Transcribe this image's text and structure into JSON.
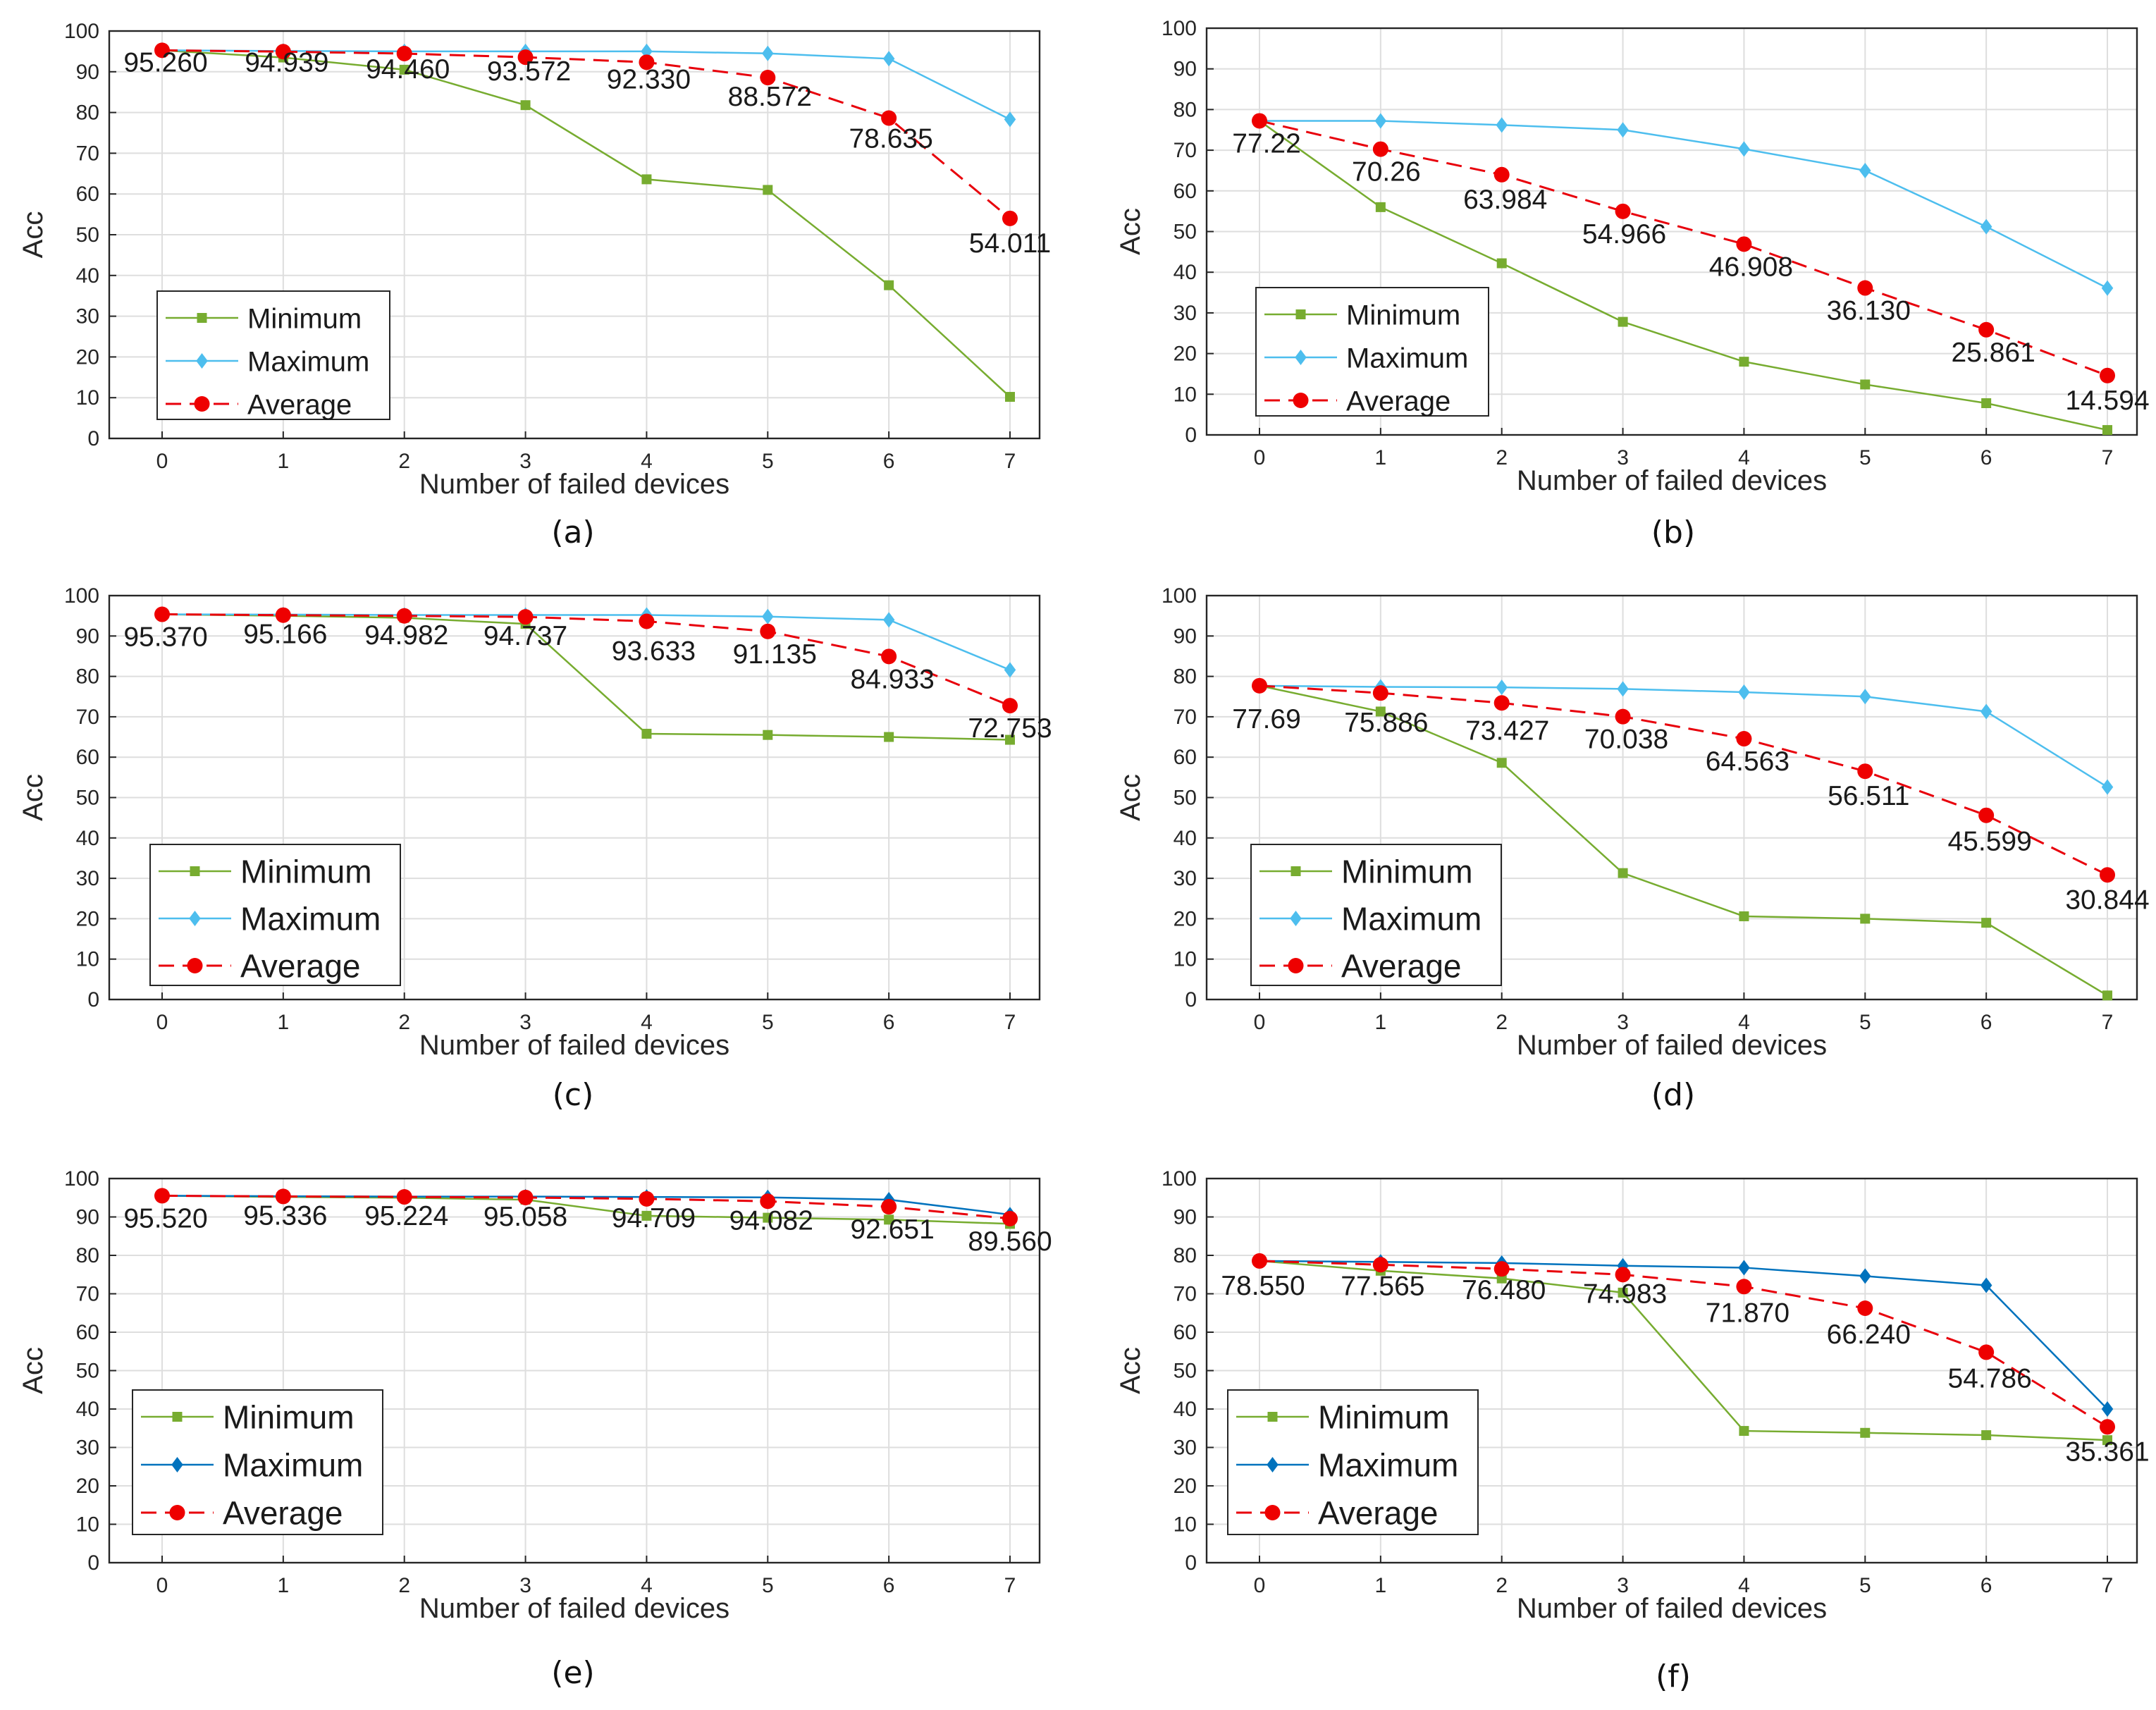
{
  "figure": "Accuracy versus number of failed devices",
  "colors": {
    "minimum": "#77AC30",
    "maximum_light": "#4DBEEE",
    "maximum_dark": "#0072BD",
    "average": "#E8000B",
    "marker_average": "#EE0000"
  },
  "chart_data": [
    {
      "id": "a",
      "type": "line",
      "caption": "(a)",
      "xlabel": "Number of failed devices",
      "ylabel": "Acc",
      "x": [
        0,
        1,
        2,
        3,
        4,
        5,
        6,
        7
      ],
      "xticks": [
        "0",
        "1",
        "2",
        "3",
        "4",
        "5",
        "6",
        "7"
      ],
      "yticks": [
        "0",
        "10",
        "20",
        "30",
        "40",
        "50",
        "60",
        "70",
        "80",
        "90",
        "100"
      ],
      "ylim": [
        0,
        100
      ],
      "grid": true,
      "legend_position": "bottom-left",
      "max_style": "light",
      "series": [
        {
          "name": "Minimum",
          "values": [
            95.26,
            93.5,
            90.5,
            81.8,
            63.6,
            61.0,
            37.6,
            10.2
          ]
        },
        {
          "name": "Maximum",
          "values": [
            95.26,
            95.1,
            95.0,
            95.0,
            95.0,
            94.5,
            93.2,
            78.3
          ]
        },
        {
          "name": "Average",
          "values": [
            95.26,
            94.939,
            94.46,
            93.572,
            92.33,
            88.572,
            78.635,
            54.011
          ]
        }
      ],
      "annotations": [
        "95.260",
        "94.939",
        "94.460",
        "93.572",
        "92.330",
        "88.572",
        "78.635",
        "54.011"
      ]
    },
    {
      "id": "b",
      "type": "line",
      "caption": "(b)",
      "xlabel": "Number of failed devices",
      "ylabel": "Acc",
      "x": [
        0,
        1,
        2,
        3,
        4,
        5,
        6,
        7
      ],
      "xticks": [
        "0",
        "1",
        "2",
        "3",
        "4",
        "5",
        "6",
        "7"
      ],
      "yticks": [
        "0",
        "10",
        "20",
        "30",
        "40",
        "50",
        "60",
        "70",
        "80",
        "90",
        "100"
      ],
      "ylim": [
        0,
        100
      ],
      "grid": true,
      "legend_position": "bottom-left",
      "max_style": "light",
      "series": [
        {
          "name": "Minimum",
          "values": [
            77.22,
            56.0,
            42.2,
            27.8,
            18.0,
            12.4,
            7.8,
            1.2
          ]
        },
        {
          "name": "Maximum",
          "values": [
            77.22,
            77.2,
            76.2,
            75.0,
            70.3,
            65.0,
            51.2,
            36.1
          ]
        },
        {
          "name": "Average",
          "values": [
            77.22,
            70.26,
            63.984,
            54.966,
            46.908,
            36.13,
            25.861,
            14.594
          ]
        }
      ],
      "annotations": [
        "77.22",
        "70.26",
        "63.984",
        "54.966",
        "46.908",
        "36.130",
        "25.861",
        "14.594"
      ]
    },
    {
      "id": "c",
      "type": "line",
      "caption": "(c)",
      "xlabel": "Number of failed devices",
      "ylabel": "Acc",
      "x": [
        0,
        1,
        2,
        3,
        4,
        5,
        6,
        7
      ],
      "xticks": [
        "0",
        "1",
        "2",
        "3",
        "4",
        "5",
        "6",
        "7"
      ],
      "yticks": [
        "0",
        "10",
        "20",
        "30",
        "40",
        "50",
        "60",
        "70",
        "80",
        "90",
        "100"
      ],
      "ylim": [
        0,
        100
      ],
      "grid": true,
      "legend_position": "bottom-left",
      "max_style": "light",
      "series": [
        {
          "name": "Minimum",
          "values": [
            95.37,
            95.0,
            94.5,
            93.0,
            65.8,
            65.5,
            65.0,
            64.3
          ]
        },
        {
          "name": "Maximum",
          "values": [
            95.37,
            95.3,
            95.2,
            95.2,
            95.2,
            94.8,
            94.0,
            81.6
          ]
        },
        {
          "name": "Average",
          "values": [
            95.37,
            95.166,
            94.982,
            94.737,
            93.633,
            91.135,
            84.933,
            72.753
          ]
        }
      ],
      "annotations": [
        "95.370",
        "95.166",
        "94.982",
        "94.737",
        "93.633",
        "91.135",
        "84.933",
        "72.753"
      ]
    },
    {
      "id": "d",
      "type": "line",
      "caption": "(d)",
      "xlabel": "Number of failed devices",
      "ylabel": "Acc",
      "x": [
        0,
        1,
        2,
        3,
        4,
        5,
        6,
        7
      ],
      "xticks": [
        "0",
        "1",
        "2",
        "3",
        "4",
        "5",
        "6",
        "7"
      ],
      "yticks": [
        "0",
        "10",
        "20",
        "30",
        "40",
        "50",
        "60",
        "70",
        "80",
        "90",
        "100"
      ],
      "ylim": [
        0,
        100
      ],
      "grid": true,
      "legend_position": "bottom-left",
      "max_style": "light",
      "series": [
        {
          "name": "Minimum",
          "values": [
            77.69,
            71.3,
            58.6,
            31.3,
            20.6,
            20.0,
            19.0,
            1.0
          ]
        },
        {
          "name": "Maximum",
          "values": [
            77.69,
            77.4,
            77.3,
            76.9,
            76.1,
            75.0,
            71.3,
            52.6
          ]
        },
        {
          "name": "Average",
          "values": [
            77.69,
            75.886,
            73.427,
            70.038,
            64.563,
            56.511,
            45.599,
            30.844
          ]
        }
      ],
      "annotations": [
        "77.69",
        "75.886",
        "73.427",
        "70.038",
        "64.563",
        "56.511",
        "45.599",
        "30.844"
      ]
    },
    {
      "id": "e",
      "type": "line",
      "caption": "(e)",
      "xlabel": "Number of failed devices",
      "ylabel": "Acc",
      "x": [
        0,
        1,
        2,
        3,
        4,
        5,
        6,
        7
      ],
      "xticks": [
        "0",
        "1",
        "2",
        "3",
        "4",
        "5",
        "6",
        "7"
      ],
      "yticks": [
        "0",
        "10",
        "20",
        "30",
        "40",
        "50",
        "60",
        "70",
        "80",
        "90",
        "100"
      ],
      "ylim": [
        0,
        100
      ],
      "grid": true,
      "legend_position": "bottom-left",
      "max_style": "dark",
      "series": [
        {
          "name": "Minimum",
          "values": [
            95.52,
            95.2,
            95.0,
            94.5,
            90.3,
            89.8,
            89.3,
            88.2
          ]
        },
        {
          "name": "Maximum",
          "values": [
            95.52,
            95.4,
            95.3,
            95.3,
            95.2,
            95.1,
            94.5,
            90.6
          ]
        },
        {
          "name": "Average",
          "values": [
            95.52,
            95.336,
            95.224,
            95.058,
            94.709,
            94.082,
            92.651,
            89.56
          ]
        }
      ],
      "annotations": [
        "95.520",
        "95.336",
        "95.224",
        "95.058",
        "94.709",
        "94.082",
        "92.651",
        "89.560"
      ]
    },
    {
      "id": "f",
      "type": "line",
      "caption": "(f)",
      "xlabel": "Number of failed devices",
      "ylabel": "Acc",
      "x": [
        0,
        1,
        2,
        3,
        4,
        5,
        6,
        7
      ],
      "xticks": [
        "0",
        "1",
        "2",
        "3",
        "4",
        "5",
        "6",
        "7"
      ],
      "yticks": [
        "0",
        "10",
        "20",
        "30",
        "40",
        "50",
        "60",
        "70",
        "80",
        "90",
        "100"
      ],
      "ylim": [
        0,
        100
      ],
      "grid": true,
      "legend_position": "bottom-left",
      "max_style": "dark",
      "series": [
        {
          "name": "Minimum",
          "values": [
            78.55,
            76.0,
            74.0,
            70.3,
            34.3,
            33.8,
            33.2,
            31.9
          ]
        },
        {
          "name": "Maximum",
          "values": [
            78.55,
            78.3,
            78.0,
            77.3,
            76.8,
            74.6,
            72.2,
            40.0
          ]
        },
        {
          "name": "Average",
          "values": [
            78.55,
            77.565,
            76.48,
            74.983,
            71.87,
            66.24,
            54.786,
            35.361
          ]
        }
      ],
      "annotations": [
        "78.550",
        "77.565",
        "76.480",
        "74.983",
        "71.870",
        "66.240",
        "54.786",
        "35.361"
      ]
    }
  ]
}
